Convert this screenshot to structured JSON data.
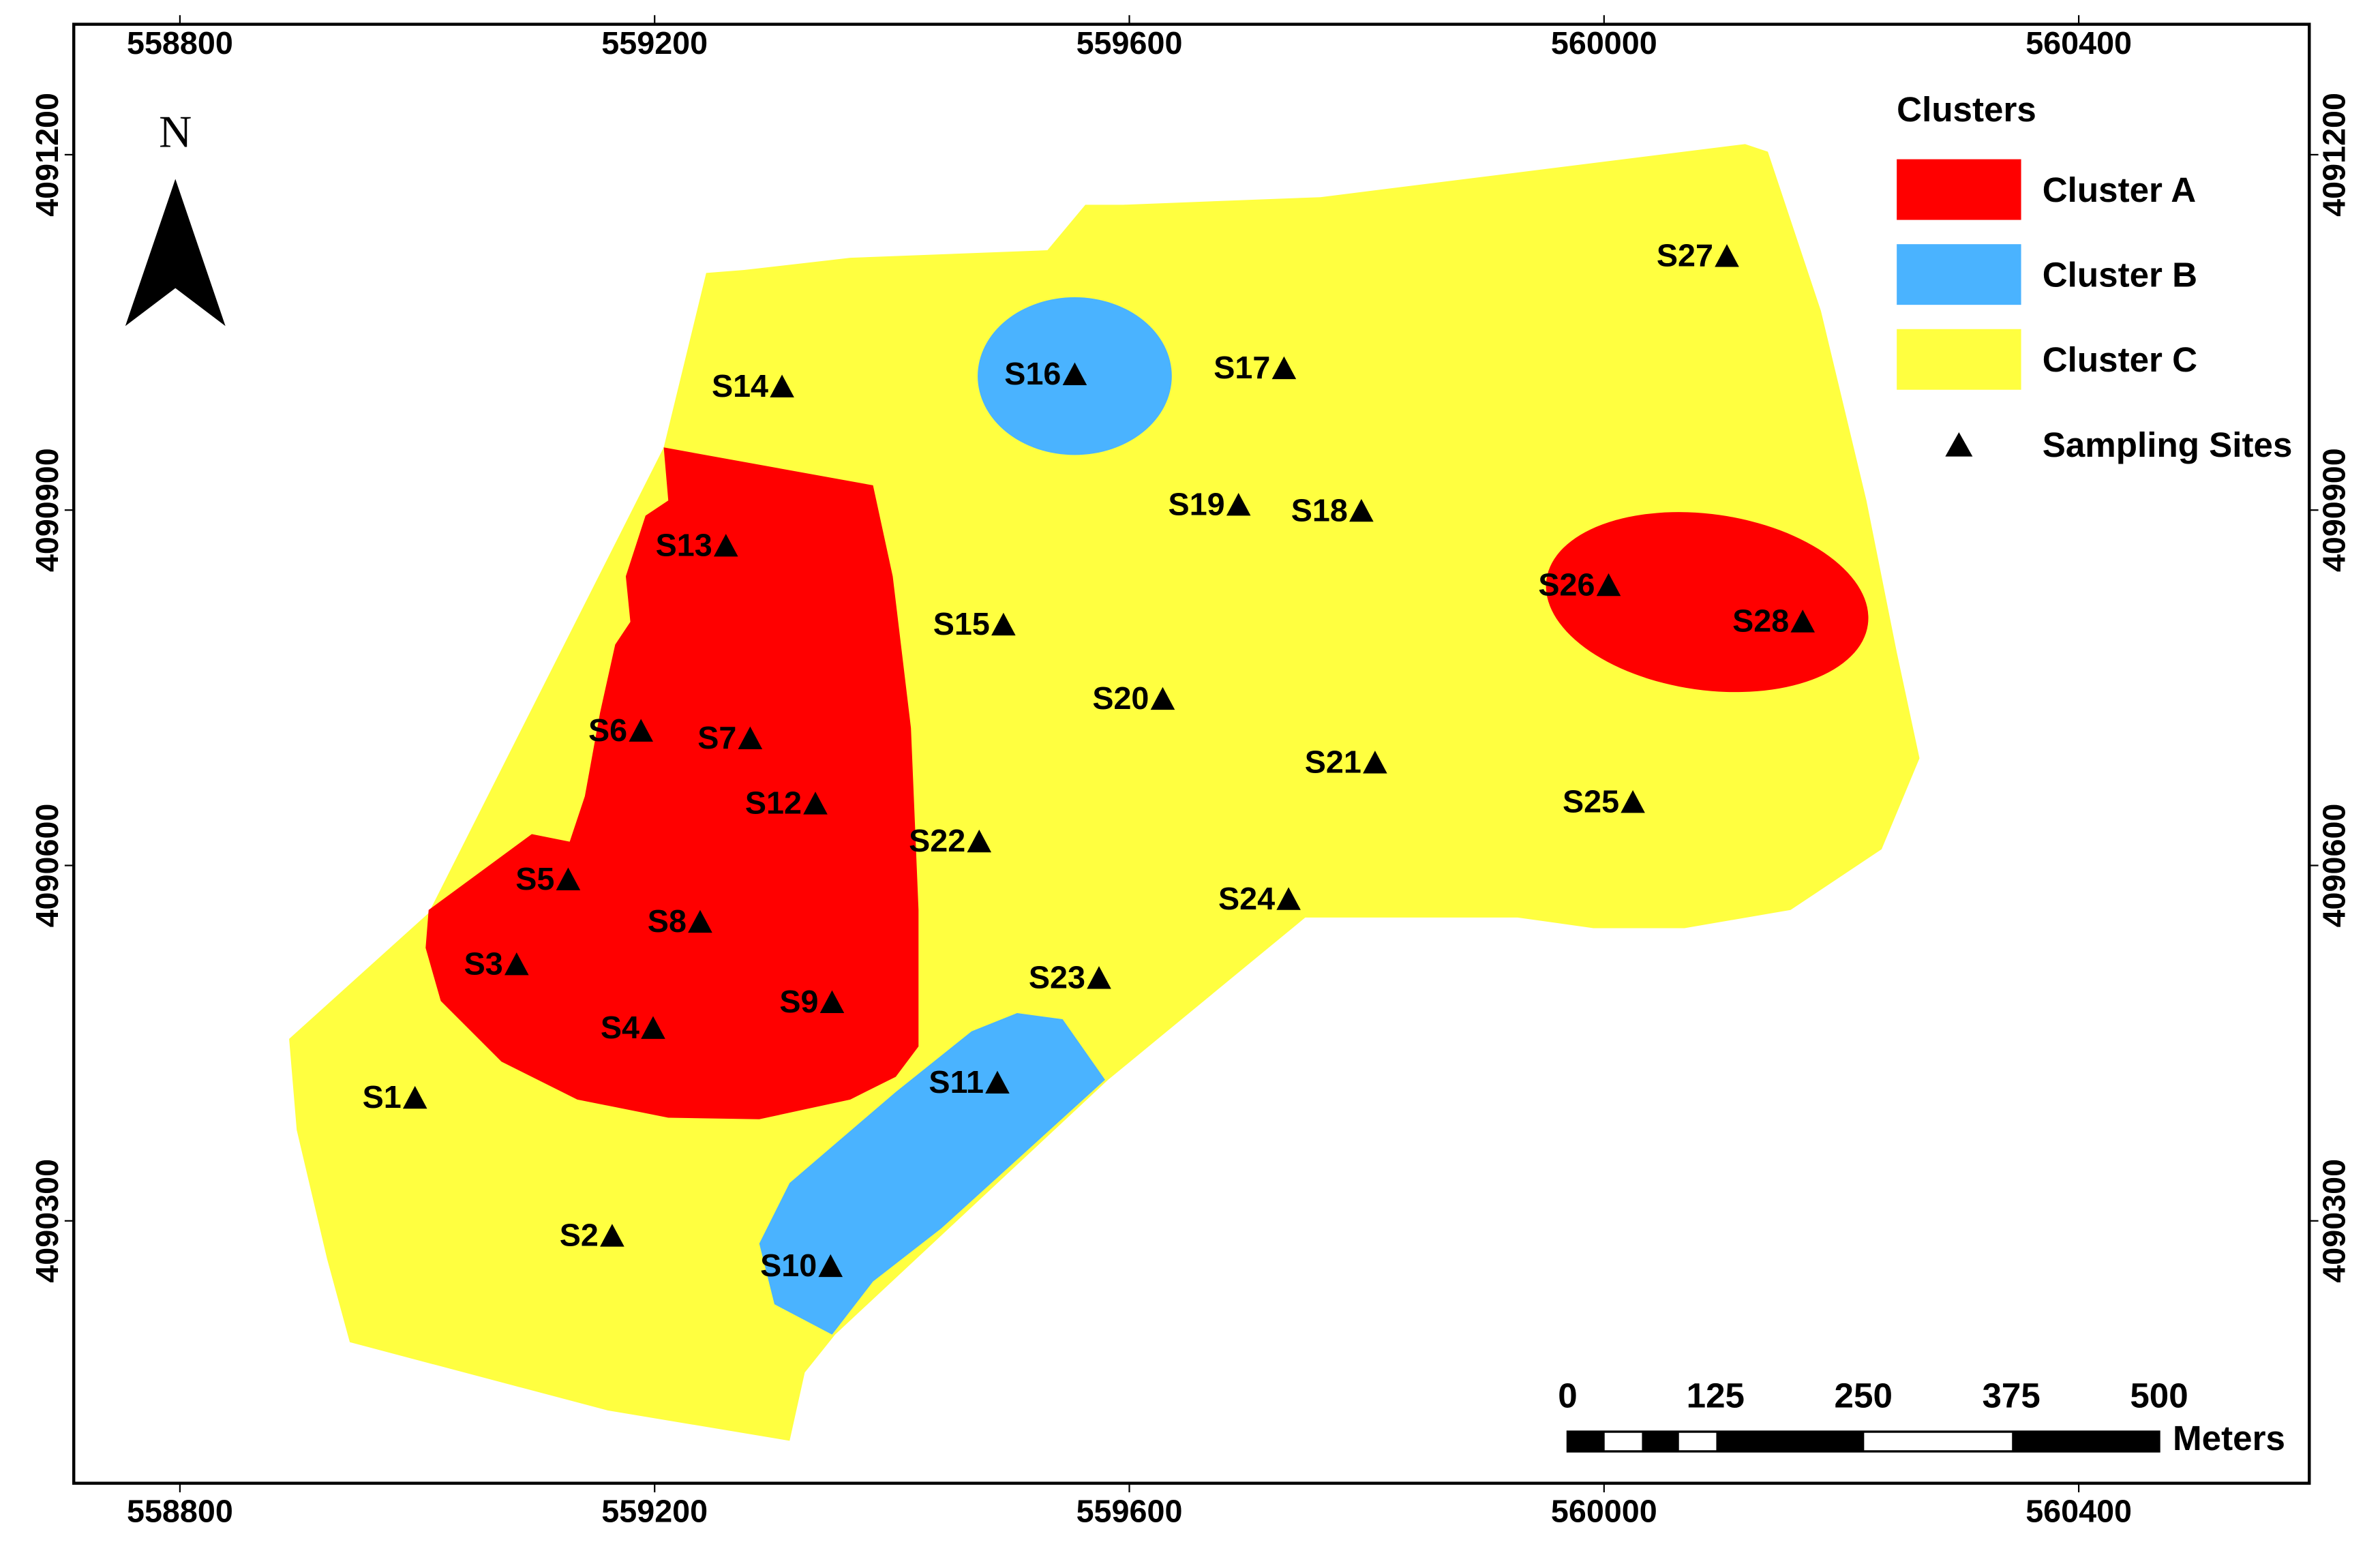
{
  "north": "N",
  "axes": {
    "x_ticks": [
      558800,
      559200,
      559600,
      560000,
      560400
    ],
    "y_ticks": [
      4090300,
      4090600,
      4090900,
      4091200
    ]
  },
  "legend": {
    "title": "Clusters",
    "items": [
      "Cluster A",
      "Cluster B",
      "Cluster C",
      "Sampling Sites"
    ]
  },
  "scale_bar": {
    "ticks": [
      0,
      125,
      250,
      375,
      500
    ],
    "unit": "Meters"
  },
  "sites": [
    "S1",
    "S2",
    "S3",
    "S4",
    "S5",
    "S6",
    "S7",
    "S8",
    "S9",
    "S10",
    "S11",
    "S12",
    "S13",
    "S14",
    "S15",
    "S16",
    "S17",
    "S18",
    "S19",
    "S20",
    "S21",
    "S22",
    "S23",
    "S24",
    "S25",
    "S26",
    "S27",
    "S28"
  ]
}
